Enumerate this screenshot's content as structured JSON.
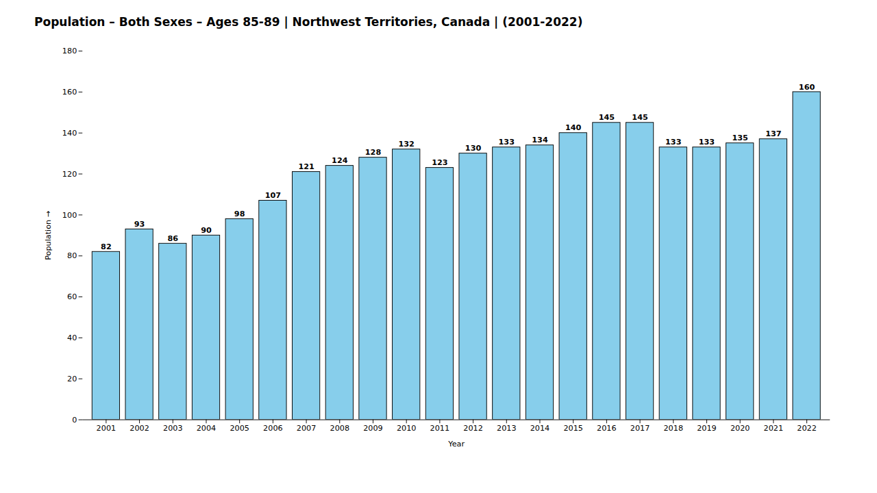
{
  "chart_data": {
    "type": "bar",
    "title": "Population – Both Sexes – Ages 85-89 | Northwest Territories, Canada |  (2001-2022)",
    "xlabel": "Year",
    "ylabel": "Population",
    "categories": [
      "2001",
      "2002",
      "2003",
      "2004",
      "2005",
      "2006",
      "2007",
      "2008",
      "2009",
      "2010",
      "2011",
      "2012",
      "2013",
      "2014",
      "2015",
      "2016",
      "2017",
      "2018",
      "2019",
      "2020",
      "2021",
      "2022"
    ],
    "values": [
      82,
      93,
      86,
      90,
      98,
      107,
      121,
      124,
      128,
      132,
      123,
      130,
      133,
      134,
      140,
      145,
      145,
      133,
      133,
      135,
      137,
      160
    ],
    "color": "#87CEEB",
    "ylim": [
      0,
      180
    ],
    "yticks": [
      0,
      20,
      40,
      60,
      80,
      100,
      120,
      140,
      160,
      180
    ],
    "grid": false,
    "data_labels": true
  }
}
